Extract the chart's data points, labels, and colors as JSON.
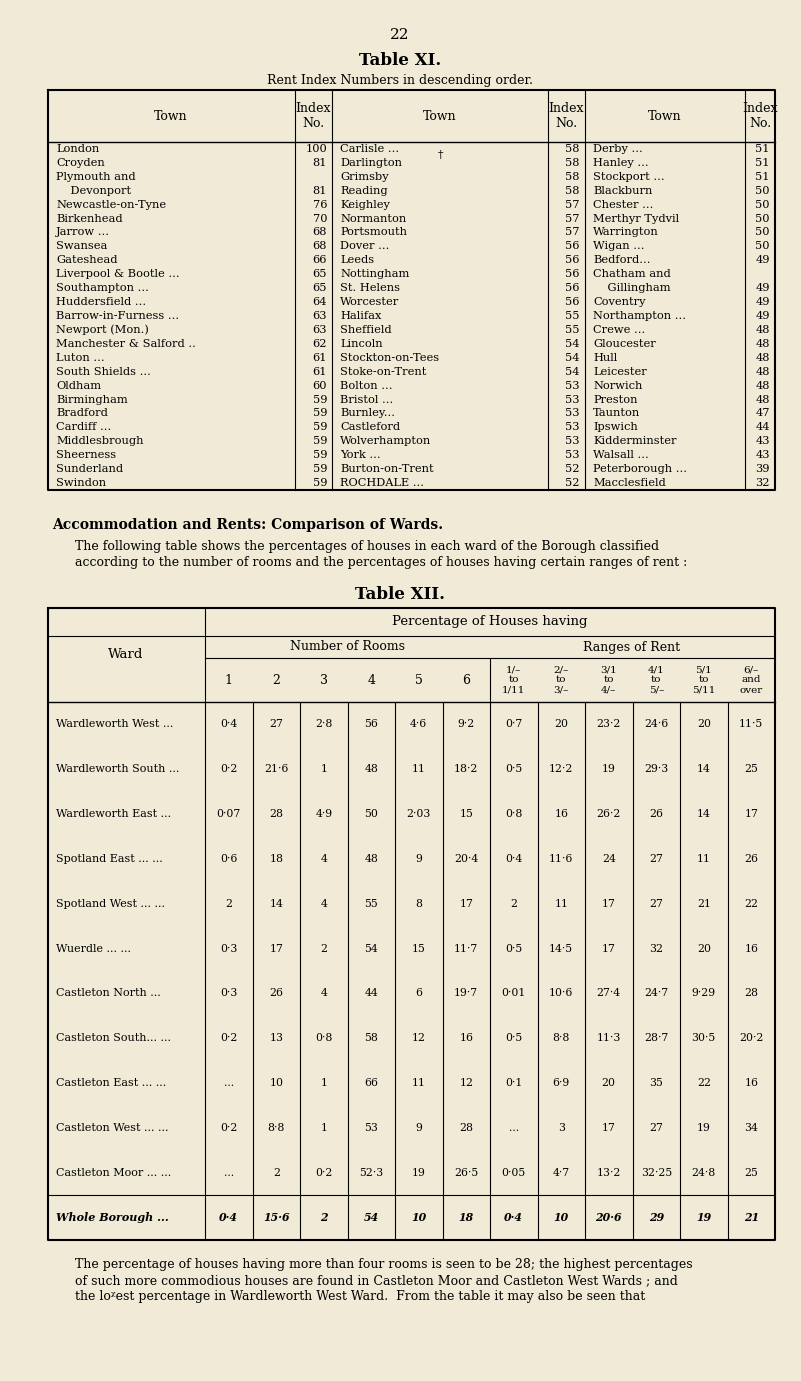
{
  "page_number": "22",
  "bg_color": "#f0ead6",
  "table_xi_title": "Table XI.",
  "table_xi_subtitle": "Rent Index Numbers in descending order.",
  "table_xi_data": [
    [
      "London",
      "100",
      "Carlisle ...",
      "58",
      "Derby ...",
      "51"
    ],
    [
      "Croyden",
      "81",
      "Darlington",
      "58",
      "Hanley ...",
      "51"
    ],
    [
      "Plymouth and",
      "",
      "Grimsby",
      "58",
      "Stockport ...",
      "51"
    ],
    [
      "    Devonport",
      "81",
      "Reading",
      "58",
      "Blackburn",
      "50"
    ],
    [
      "Newcastle-on-Tyne",
      "76",
      "Keighley",
      "57",
      "Chester ...",
      "50"
    ],
    [
      "Birkenhead",
      "70",
      "Normanton",
      "57",
      "Merthyr Tydvil",
      "50"
    ],
    [
      "Jarrow ...",
      "68",
      "Portsmouth",
      "57",
      "Warrington",
      "50"
    ],
    [
      "Swansea",
      "68",
      "Dover ...",
      "56",
      "Wigan ...",
      "50"
    ],
    [
      "Gateshead",
      "66",
      "Leeds",
      "56",
      "Bedford...",
      "49"
    ],
    [
      "Liverpool & Bootle ...",
      "65",
      "Nottingham",
      "56",
      "Chatham and",
      ""
    ],
    [
      "Southampton ...",
      "65",
      "St. Helens",
      "56",
      "    Gillingham",
      "49"
    ],
    [
      "Huddersfield ...",
      "64",
      "Worcester",
      "56",
      "Coventry",
      "49"
    ],
    [
      "Barrow-in-Furness ...",
      "63",
      "Halifax",
      "55",
      "Northampton ...",
      "49"
    ],
    [
      "Newport (Mon.)",
      "63",
      "Sheffield",
      "55",
      "Crewe ...",
      "48"
    ],
    [
      "Manchester & Salford ..",
      "62",
      "Lincoln",
      "54",
      "Gloucester",
      "48"
    ],
    [
      "Luton ...",
      "61",
      "Stockton-on-Tees",
      "54",
      "Hull",
      "48"
    ],
    [
      "South Shields ...",
      "61",
      "Stoke-on-Trent",
      "54",
      "Leicester",
      "48"
    ],
    [
      "Oldham",
      "60",
      "Bolton ...",
      "53",
      "Norwich",
      "48"
    ],
    [
      "Birmingham",
      "59",
      "Bristol ...",
      "53",
      "Preston",
      "48"
    ],
    [
      "Bradford",
      "59",
      "Burnley...",
      "53",
      "Taunton",
      "47"
    ],
    [
      "Cardiff ...",
      "59",
      "Castleford",
      "53",
      "Ipswich",
      "44"
    ],
    [
      "Middlesbrough",
      "59",
      "Wolverhampton",
      "53",
      "Kidderminster",
      "43"
    ],
    [
      "Sheerness",
      "59",
      "York ...",
      "53",
      "Walsall ...",
      "43"
    ],
    [
      "Sunderland",
      "59",
      "Burton-on-Trent",
      "52",
      "Peterborough ...",
      "39"
    ],
    [
      "Swindon",
      "59",
      "ROCHDALE ...",
      "52",
      "Macclesfield",
      "32"
    ]
  ],
  "accom_title": "Accommodation and Rents: Comparison of Wards.",
  "accom_text1": "The following table shows the percentages of houses in each ward of the Borough classified",
  "accom_text2": "according to the number of rooms and the percentages of houses having certain ranges of rent :",
  "table_xii_title": "Table XII.",
  "table_xii_header_main": "Percentage of Houses having",
  "table_xii_header_sub1": "Number of Rooms",
  "table_xii_header_sub2": "Ranges of Rent",
  "table_xii_room_cols": [
    "1",
    "2",
    "3",
    "4",
    "5",
    "6"
  ],
  "table_xii_rent_col1": [
    "1/–",
    "to",
    "1/11"
  ],
  "table_xii_rent_col2": [
    "2/–",
    "to",
    "3/–"
  ],
  "table_xii_rent_col3": [
    "3/1",
    "to",
    "4/–"
  ],
  "table_xii_rent_col4": [
    "4/1",
    "to",
    "5/–"
  ],
  "table_xii_rent_col5": [
    "5/1",
    "to",
    "5/11"
  ],
  "table_xii_rent_col6": [
    "6/–",
    "and",
    "over"
  ],
  "table_xii_wards": [
    [
      "Wardleworth West",
      "..."
    ],
    [
      "Wardleworth South",
      "..."
    ],
    [
      "Wardleworth East",
      "..."
    ],
    [
      "Spotland East ...",
      "..."
    ],
    [
      "Spotland West ...",
      "..."
    ],
    [
      "Wuerdle ...",
      "..."
    ],
    [
      "Castleton North",
      "..."
    ],
    [
      "Castleton South...",
      "..."
    ],
    [
      "Castleton East ...",
      "..."
    ],
    [
      "Castleton West ...",
      "..."
    ],
    [
      "Castleton Moor ...",
      "..."
    ],
    [
      "Whole Borough",
      "..."
    ]
  ],
  "table_xii_ward_names": [
    "Wardleworth West",
    "Wardleworth South",
    "Wardleworth East",
    "Spotland East ...",
    "Spotland West ...",
    "Wuerdle ...",
    "Castleton North",
    "Castleton South...",
    "Castleton East ...",
    "Castleton West ...",
    "Castleton Moor ...",
    "Whole Borough"
  ],
  "table_xii_data": [
    [
      "0·4",
      "27",
      "2·8",
      "56",
      "4·6",
      "9·2",
      "0·7",
      "20",
      "23·2",
      "24·6",
      "20",
      "11·5"
    ],
    [
      "0·2",
      "21·6",
      "1",
      "48",
      "11",
      "18·2",
      "0·5",
      "12·2",
      "19",
      "29·3",
      "14",
      "25"
    ],
    [
      "0·07",
      "28",
      "4·9",
      "50",
      "2·03",
      "15",
      "0·8",
      "16",
      "26·2",
      "26",
      "14",
      "17"
    ],
    [
      "0·6",
      "18",
      "4",
      "48",
      "9",
      "20·4",
      "0·4",
      "11·6",
      "24",
      "27",
      "11",
      "26"
    ],
    [
      "2",
      "14",
      "4",
      "55",
      "8",
      "17",
      "2",
      "11",
      "17",
      "27",
      "21",
      "22"
    ],
    [
      "0·3",
      "17",
      "2",
      "54",
      "15",
      "11·7",
      "0·5",
      "14·5",
      "17",
      "32",
      "20",
      "16"
    ],
    [
      "0·3",
      "26",
      "4",
      "44",
      "6",
      "19·7",
      "0·01",
      "10·6",
      "27·4",
      "24·7",
      "9·29",
      "28"
    ],
    [
      "0·2",
      "13",
      "0·8",
      "58",
      "12",
      "16",
      "0·5",
      "8·8",
      "11·3",
      "28·7",
      "30·5",
      "20·2"
    ],
    [
      "...",
      "10",
      "1",
      "66",
      "11",
      "12",
      "0·1",
      "6·9",
      "20",
      "35",
      "22",
      "16"
    ],
    [
      "0·2",
      "8·8",
      "1",
      "53",
      "9",
      "28",
      "...",
      "3",
      "17",
      "27",
      "19",
      "34"
    ],
    [
      "...",
      "2",
      "0·2",
      "52·3",
      "19",
      "26·5",
      "0·05",
      "4·7",
      "13·2",
      "32·25",
      "24·8",
      "25"
    ],
    [
      "0·4",
      "15·6",
      "2",
      "54",
      "10",
      "18",
      "0·4",
      "10",
      "20·6",
      "29",
      "19",
      "21"
    ]
  ],
  "footer_text": "The percentage of houses having more than four rooms is seen to be 28; the highest percentages\nof such more commodious houses are found in Castleton Moor and Castleton West Wards ; and\nthe loᵡest percentage in Wardleworth West Ward.  From the table it may also be seen that"
}
